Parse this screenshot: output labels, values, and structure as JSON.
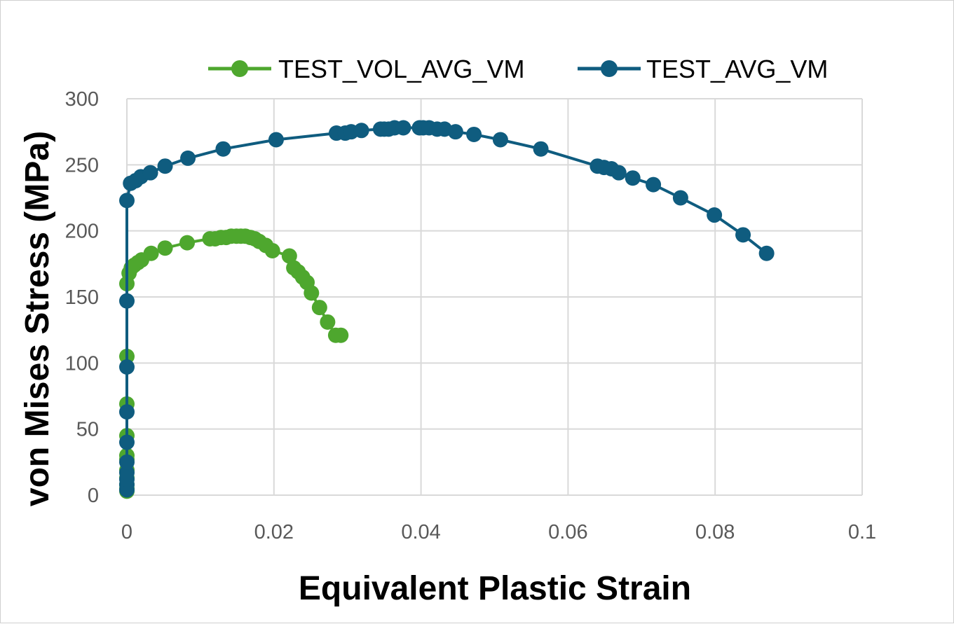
{
  "chart_data": {
    "type": "scatter",
    "xlabel": "Equivalent Plastic Strain",
    "ylabel": "von Mises Stress (MPa)",
    "xlim": [
      0,
      0.1
    ],
    "ylim": [
      0,
      300
    ],
    "x_ticks": [
      0,
      0.02,
      0.04,
      0.06,
      0.08,
      0.1
    ],
    "y_ticks": [
      0,
      50,
      100,
      150,
      200,
      250,
      300
    ],
    "x_tick_labels": [
      "0",
      "0.02",
      "0.04",
      "0.06",
      "0.08",
      "0.1"
    ],
    "y_tick_labels": [
      "0",
      "50",
      "100",
      "150",
      "200",
      "250",
      "300"
    ],
    "grid": true,
    "legend_position": "top",
    "series": [
      {
        "name": "TEST_VOL_AVG_VM",
        "color": "#4ea72e",
        "x": [
          0,
          0,
          0,
          0,
          0,
          0,
          0,
          0,
          0,
          0,
          0,
          0.0003,
          0.0006,
          0.001,
          0.0015,
          0.002,
          0.0033,
          0.0052,
          0.0082,
          0.0113,
          0.012,
          0.0128,
          0.0135,
          0.0142,
          0.0149,
          0.0155,
          0.0161,
          0.0168,
          0.0174,
          0.018,
          0.0189,
          0.0198,
          0.0221,
          0.0227,
          0.0233,
          0.0239,
          0.0245,
          0.0251,
          0.0262,
          0.0273,
          0.0284,
          0.0291
        ],
        "y": [
          3,
          5,
          8,
          13,
          19,
          27,
          30,
          45,
          69,
          105,
          160,
          168,
          172,
          174,
          176,
          178,
          183,
          187,
          191,
          194,
          194,
          195,
          195,
          196,
          196,
          196,
          196,
          195,
          194,
          192,
          189,
          185,
          181,
          172,
          169,
          165,
          161,
          153,
          142,
          131,
          121,
          121
        ]
      },
      {
        "name": "TEST_AVG_VM",
        "color": "#0f5c7f",
        "x": [
          0,
          0,
          0,
          0,
          0,
          0,
          0,
          0,
          0,
          0,
          0.0005,
          0.0012,
          0.0019,
          0.0032,
          0.0052,
          0.0083,
          0.0131,
          0.0203,
          0.0285,
          0.0297,
          0.0305,
          0.0319,
          0.0345,
          0.035,
          0.0356,
          0.0364,
          0.0376,
          0.0398,
          0.0403,
          0.0411,
          0.0422,
          0.0432,
          0.0447,
          0.0472,
          0.0508,
          0.0563,
          0.064,
          0.0649,
          0.0659,
          0.0669,
          0.0688,
          0.0716,
          0.0753,
          0.0799,
          0.0838,
          0.087
        ],
        "y": [
          4,
          8,
          12,
          17,
          25,
          40,
          63,
          97,
          147,
          223,
          236,
          238,
          241,
          244,
          249,
          255,
          262,
          269,
          274,
          274,
          275,
          276,
          277,
          277,
          277,
          278,
          278,
          278,
          278,
          278,
          277,
          277,
          275,
          273,
          269,
          262,
          249,
          248,
          247,
          244,
          240,
          235,
          225,
          212,
          197,
          183
        ]
      }
    ]
  }
}
